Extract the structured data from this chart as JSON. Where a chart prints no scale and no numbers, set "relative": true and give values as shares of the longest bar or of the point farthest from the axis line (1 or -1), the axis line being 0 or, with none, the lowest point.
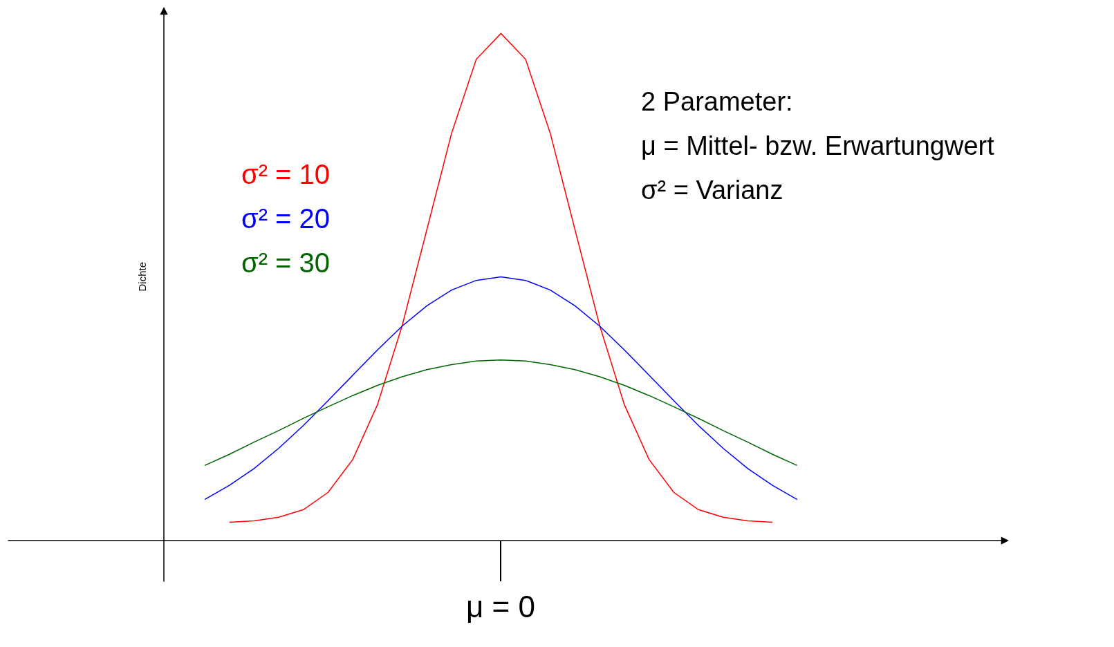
{
  "chart_data": {
    "type": "line",
    "relative": true,
    "ylabel": "Dichte",
    "legend": false,
    "marker": "none",
    "line_style": "solid",
    "categories": [
      null,
      null,
      null,
      null,
      null,
      null,
      null,
      null,
      null,
      null,
      null,
      null,
      null,
      null,
      null,
      null,
      null,
      null,
      null,
      null,
      null,
      null,
      null,
      null,
      null
    ],
    "series": [
      {
        "name": "σ² = 10",
        "color": "#ff0000",
        "values": [
          null,
          0.036,
          0.039,
          0.046,
          0.061,
          0.095,
          0.16,
          0.268,
          0.424,
          0.613,
          0.803,
          0.949,
          1.0,
          0.949,
          0.803,
          0.613,
          0.424,
          0.268,
          0.16,
          0.095,
          0.061,
          0.046,
          0.039,
          0.036,
          null
        ]
      },
      {
        "name": "σ² = 20",
        "color": "#0000ff",
        "values": [
          0.081,
          0.109,
          0.142,
          0.182,
          0.227,
          0.276,
          0.326,
          0.376,
          0.423,
          0.463,
          0.494,
          0.513,
          0.52,
          0.513,
          0.494,
          0.463,
          0.423,
          0.376,
          0.326,
          0.276,
          0.227,
          0.182,
          0.142,
          0.109,
          0.081
        ]
      },
      {
        "name": "σ² = 30",
        "color": "#006400",
        "values": [
          0.148,
          0.17,
          0.194,
          0.217,
          0.241,
          0.264,
          0.286,
          0.306,
          0.323,
          0.337,
          0.347,
          0.354,
          0.356,
          0.354,
          0.347,
          0.337,
          0.323,
          0.306,
          0.286,
          0.264,
          0.241,
          0.217,
          0.194,
          0.17,
          0.148
        ]
      }
    ],
    "annotations": [
      "2 Parameter:",
      "μ = Mittel- bzw. Erwartungwert",
      "σ² = Varianz",
      "μ = 0"
    ]
  }
}
